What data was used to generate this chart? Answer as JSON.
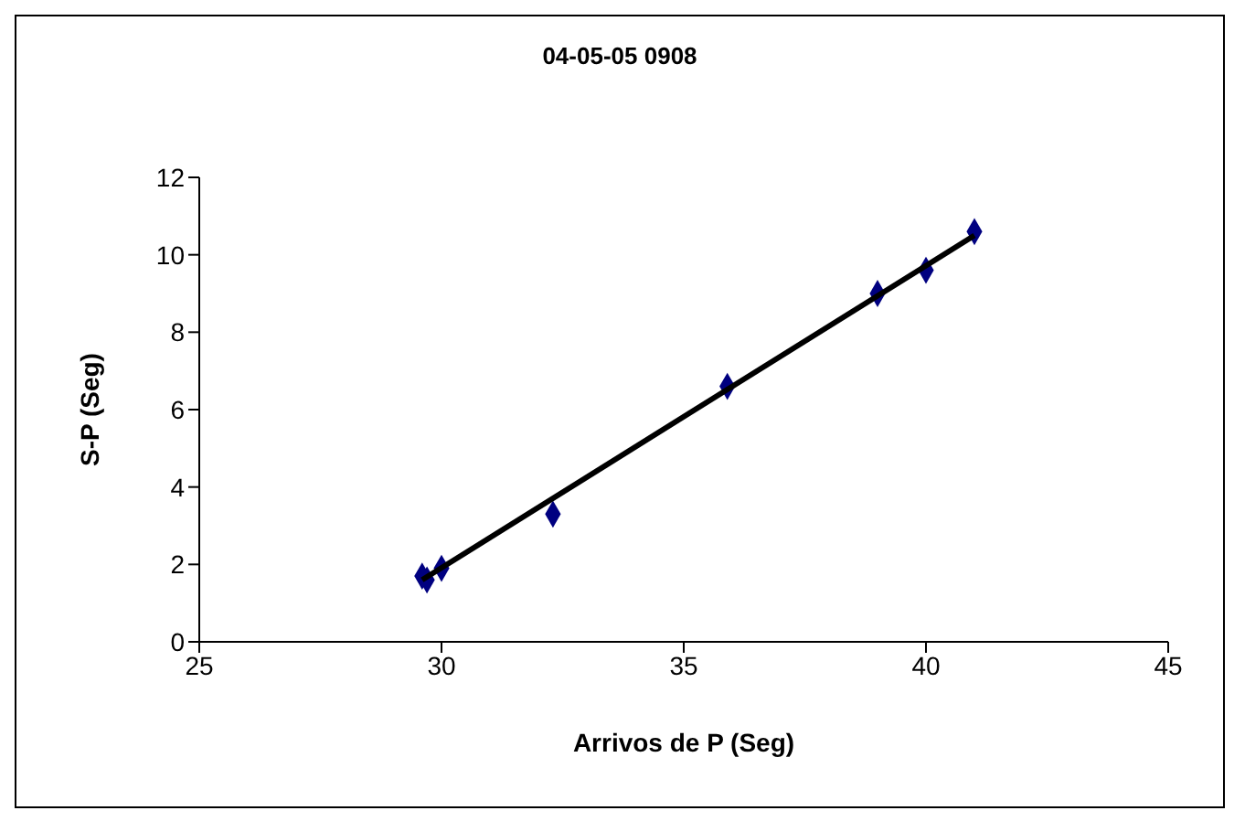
{
  "chart_data": {
    "type": "scatter",
    "title": "04-05-05 0908",
    "xlabel": "Arrivos de P (Seg)",
    "ylabel": "S-P (Seg)",
    "xlim": [
      25,
      45
    ],
    "xticks": [
      25,
      30,
      35,
      40,
      45
    ],
    "ylim": [
      0,
      12
    ],
    "yticks": [
      0,
      2,
      4,
      6,
      8,
      10,
      12
    ],
    "grid": false,
    "series": [
      {
        "marker": "diamond",
        "color": "#000080",
        "x": [
          29.6,
          29.7,
          30.0,
          32.3,
          35.9,
          39.0,
          40.0,
          41.0
        ],
        "values": [
          1.7,
          1.6,
          1.9,
          3.3,
          6.6,
          9.0,
          9.6,
          10.6
        ]
      },
      {
        "type": "line",
        "marker": "none",
        "color": "#000000",
        "x": [
          29.6,
          41.0
        ],
        "values": [
          1.6,
          10.5
        ]
      }
    ]
  }
}
